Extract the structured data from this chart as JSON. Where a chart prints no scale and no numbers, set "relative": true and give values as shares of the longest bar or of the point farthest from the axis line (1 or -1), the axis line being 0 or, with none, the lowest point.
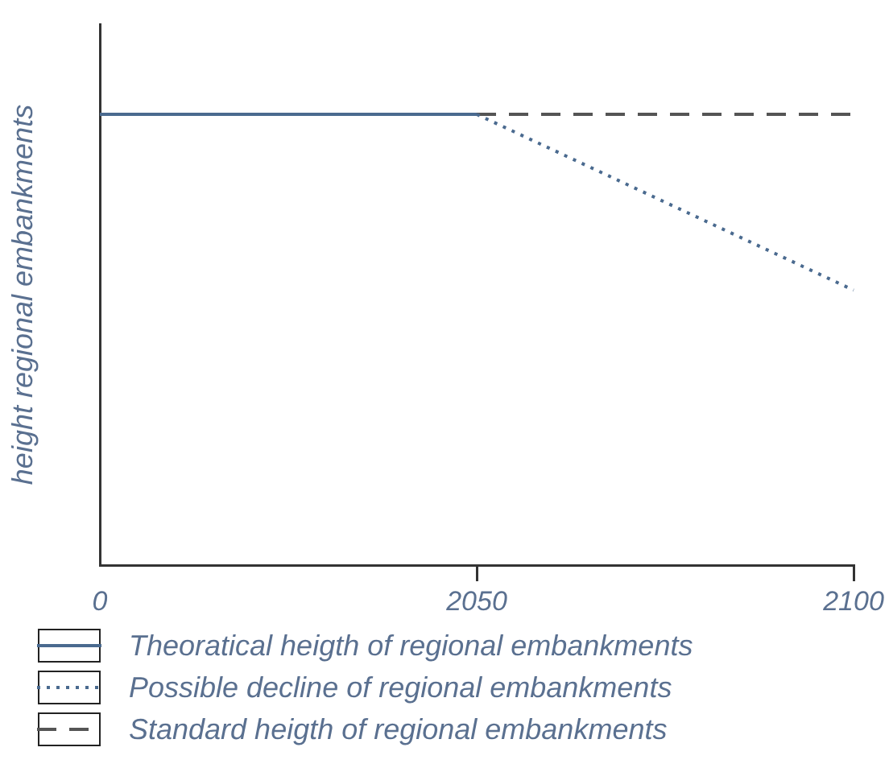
{
  "chart_data": {
    "type": "line",
    "relative": true,
    "ylabel": "height regional embankments",
    "categories": [
      "0",
      "2050",
      "2100"
    ],
    "series": [
      {
        "name": "Theoratical heigth of regional embankments",
        "color": "#4a6a8f",
        "line_style": "solid",
        "values": [
          1,
          1,
          null
        ]
      },
      {
        "name": "Possible decline of regional embankments",
        "color": "#4a6a8f",
        "line_style": "dotted",
        "values": [
          null,
          1,
          0.61
        ]
      },
      {
        "name": "Standard heigth of regional embankments",
        "color": "#555555",
        "line_style": "dashed",
        "values": [
          null,
          1,
          1
        ]
      }
    ],
    "marker": "none",
    "grid": false,
    "legend": "bottom"
  }
}
